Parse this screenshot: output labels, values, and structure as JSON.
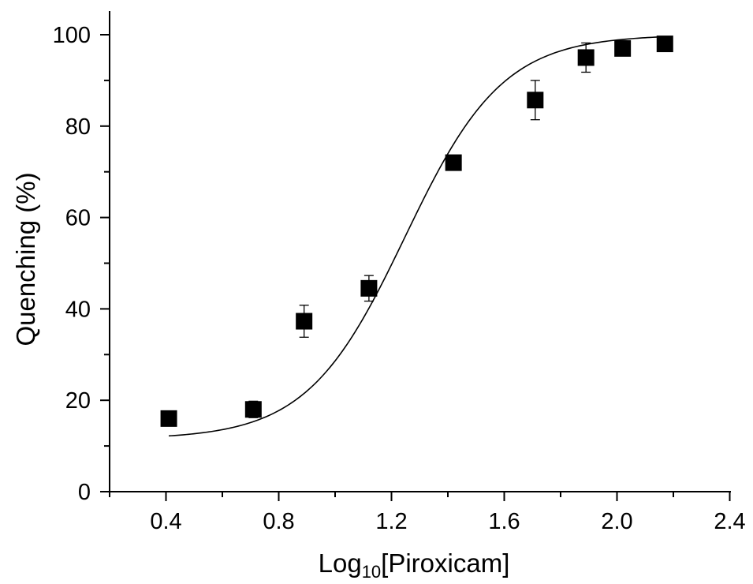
{
  "chart_data": {
    "type": "scatter",
    "xlabel_main": "Log",
    "xlabel_sub": "10",
    "xlabel_rest": "[Piroxicam]",
    "ylabel": "Quenching (%)",
    "xlim": [
      0.2,
      2.5
    ],
    "ylim": [
      0,
      104
    ],
    "x_ticks": [
      0.4,
      0.8,
      1.2,
      1.6,
      2.0,
      2.4
    ],
    "x_tick_labels": [
      "0.4",
      "0.8",
      "1.2",
      "1.6",
      "2.0",
      "2.4"
    ],
    "x_minor_ticks": [
      0.2,
      0.6,
      1.0,
      1.4,
      1.8,
      2.2
    ],
    "y_ticks": [
      0,
      20,
      40,
      60,
      80,
      100
    ],
    "y_tick_labels": [
      "0",
      "20",
      "40",
      "60",
      "80",
      "100"
    ],
    "y_minor_ticks": [
      10,
      30,
      50,
      70,
      90
    ],
    "series": [
      {
        "x": [
          0.41,
          0.71,
          0.89,
          1.12,
          1.42,
          1.71,
          1.89,
          2.02,
          2.17
        ],
        "y": [
          16.0,
          18.0,
          37.3,
          44.5,
          72.0,
          85.7,
          95.0,
          97.0,
          98.0
        ],
        "err": [
          0.6,
          1.8,
          3.5,
          2.8,
          1.5,
          4.3,
          3.2,
          1.2,
          1.2
        ]
      }
    ],
    "fit": {
      "model": "sigmoid",
      "bottom": 11.5,
      "top": 100,
      "x0": 1.248,
      "slope": 2.5,
      "x_range": [
        0.41,
        2.17
      ]
    },
    "grid": false,
    "legend": "none"
  }
}
